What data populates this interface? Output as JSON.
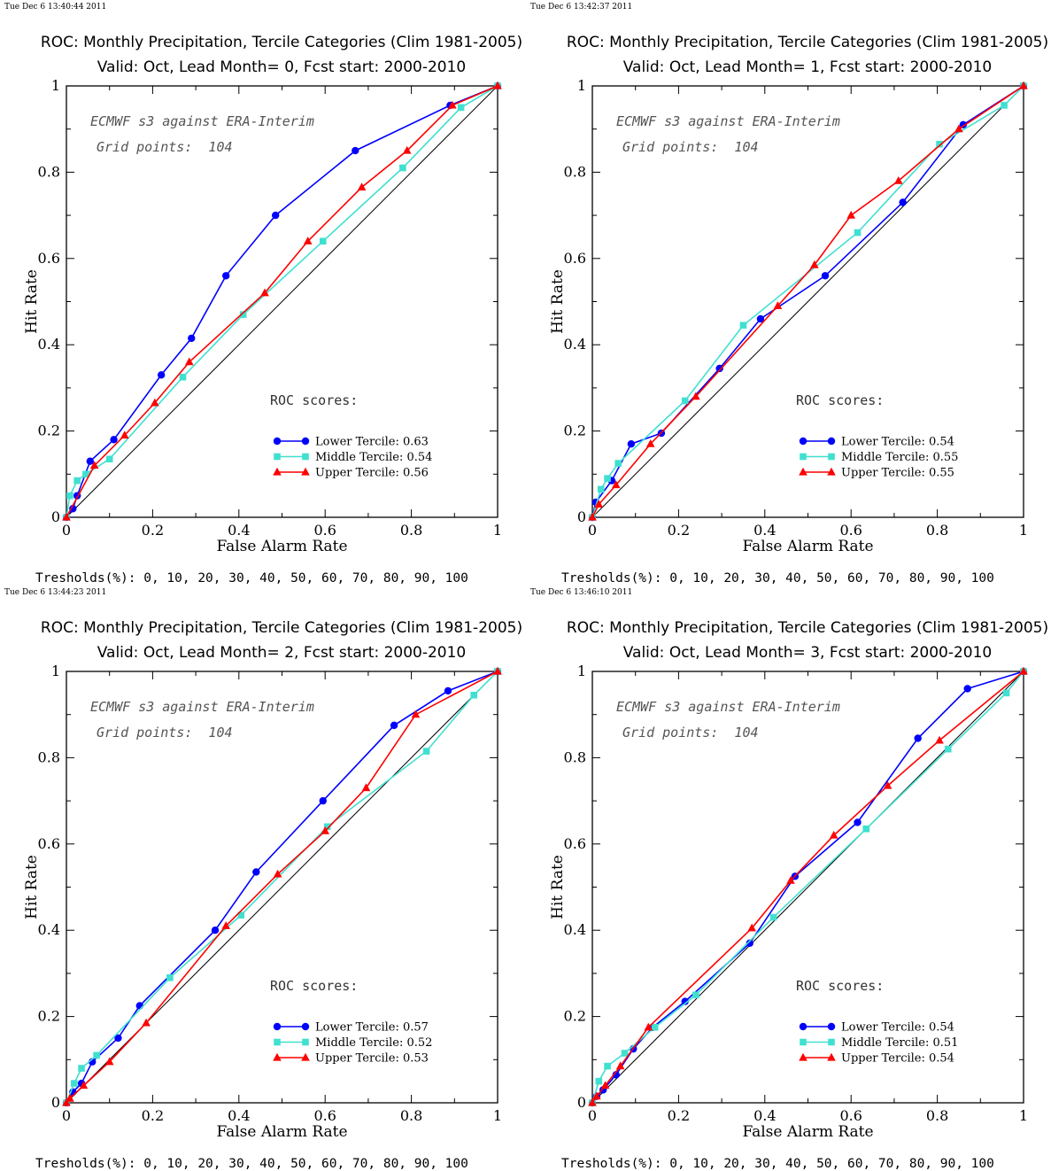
{
  "colors": {
    "lower": "#0000ff",
    "middle": "#40e0d0",
    "upper": "#ff0000"
  },
  "chart_data": [
    {
      "type": "line",
      "timestamp": "Tue Dec  6 13:40:44 2011",
      "title": "ROC: Monthly Precipitation, Tercile Categories (Clim 1981-2005)",
      "subtitle": "Valid: Oct, Lead Month= 0, Fcst start: 2000-2010",
      "xlabel": "False Alarm Rate",
      "ylabel": "Hit Rate",
      "xlim": [
        0,
        1
      ],
      "ylim": [
        0,
        1
      ],
      "xticks": [
        "0",
        "0.2",
        "0.4",
        "0.6",
        "0.8",
        "1"
      ],
      "yticks": [
        "0",
        "0.2",
        "0.4",
        "0.6",
        "0.8",
        "1"
      ],
      "annotation1": "ECMWF s3 against ERA-Interim",
      "annotation2": "Grid points:  104",
      "scores_label": "ROC scores:",
      "thresholds": "Tresholds(%): 0, 10, 20, 30, 40, 50, 60, 70, 80, 90, 100",
      "series": [
        {
          "name": "Lower Tercile: 0.63",
          "marker": "circle",
          "x": [
            0,
            0.015,
            0.025,
            0.055,
            0.11,
            0.22,
            0.29,
            0.37,
            0.485,
            0.67,
            0.89,
            1
          ],
          "y": [
            0,
            0.02,
            0.05,
            0.13,
            0.18,
            0.33,
            0.415,
            0.56,
            0.7,
            0.85,
            0.955,
            1
          ]
        },
        {
          "name": "Middle Tercile: 0.54",
          "marker": "square",
          "x": [
            0,
            0.008,
            0.025,
            0.045,
            0.1,
            0.27,
            0.41,
            0.595,
            0.78,
            0.915,
            1
          ],
          "y": [
            0,
            0.05,
            0.085,
            0.1,
            0.135,
            0.325,
            0.47,
            0.64,
            0.81,
            0.95,
            1
          ]
        },
        {
          "name": "Upper Tercile: 0.56",
          "marker": "triangle",
          "x": [
            0,
            0.065,
            0.135,
            0.205,
            0.285,
            0.46,
            0.56,
            0.685,
            0.79,
            0.895,
            1
          ],
          "y": [
            0,
            0.12,
            0.19,
            0.265,
            0.36,
            0.52,
            0.64,
            0.765,
            0.85,
            0.955,
            1
          ]
        }
      ]
    },
    {
      "type": "line",
      "timestamp": "Tue Dec  6 13:42:37 2011",
      "title": "ROC: Monthly Precipitation, Tercile Categories (Clim 1981-2005)",
      "subtitle": "Valid: Oct, Lead Month= 1, Fcst start: 2000-2010",
      "xlabel": "False Alarm Rate",
      "ylabel": "Hit Rate",
      "xlim": [
        0,
        1
      ],
      "ylim": [
        0,
        1
      ],
      "xticks": [
        "0",
        "0.2",
        "0.4",
        "0.6",
        "0.8",
        "1"
      ],
      "yticks": [
        "0",
        "0.2",
        "0.4",
        "0.6",
        "0.8",
        "1"
      ],
      "annotation1": "ECMWF s3 against ERA-Interim",
      "annotation2": "Grid points:  104",
      "scores_label": "ROC scores:",
      "thresholds": "Tresholds(%): 0, 10, 20, 30, 40, 50, 60, 70, 80, 90, 100",
      "series": [
        {
          "name": "Lower Tercile: 0.54",
          "marker": "circle",
          "x": [
            0,
            0.008,
            0.045,
            0.09,
            0.16,
            0.295,
            0.39,
            0.54,
            0.72,
            0.86,
            1
          ],
          "y": [
            0,
            0.035,
            0.085,
            0.17,
            0.195,
            0.345,
            0.46,
            0.56,
            0.73,
            0.91,
            1
          ]
        },
        {
          "name": "Middle Tercile: 0.55",
          "marker": "square",
          "x": [
            0,
            0.02,
            0.035,
            0.06,
            0.215,
            0.35,
            0.615,
            0.805,
            0.955,
            1
          ],
          "y": [
            0,
            0.065,
            0.09,
            0.125,
            0.27,
            0.445,
            0.66,
            0.865,
            0.955,
            1
          ]
        },
        {
          "name": "Upper Tercile: 0.55",
          "marker": "triangle",
          "x": [
            0,
            0.015,
            0.055,
            0.135,
            0.24,
            0.43,
            0.515,
            0.6,
            0.71,
            0.85,
            1
          ],
          "y": [
            0,
            0.03,
            0.075,
            0.17,
            0.28,
            0.49,
            0.585,
            0.7,
            0.78,
            0.9,
            1
          ]
        }
      ]
    },
    {
      "type": "line",
      "timestamp": "Tue Dec  6 13:44:23 2011",
      "title": "ROC: Monthly Precipitation, Tercile Categories (Clim 1981-2005)",
      "subtitle": "Valid: Oct, Lead Month= 2, Fcst start: 2000-2010",
      "xlabel": "False Alarm Rate",
      "ylabel": "Hit Rate",
      "xlim": [
        0,
        1
      ],
      "ylim": [
        0,
        1
      ],
      "xticks": [
        "0",
        "0.2",
        "0.4",
        "0.6",
        "0.8",
        "1"
      ],
      "yticks": [
        "0",
        "0.2",
        "0.4",
        "0.6",
        "0.8",
        "1"
      ],
      "annotation1": "ECMWF s3 against ERA-Interim",
      "annotation2": "Grid points:  104",
      "scores_label": "ROC scores:",
      "thresholds": "Tresholds(%): 0, 10, 20, 30, 40, 50, 60, 70, 80, 90, 100",
      "series": [
        {
          "name": "Lower Tercile: 0.57",
          "marker": "circle",
          "x": [
            0,
            0.015,
            0.035,
            0.06,
            0.12,
            0.17,
            0.345,
            0.44,
            0.595,
            0.76,
            0.885,
            1
          ],
          "y": [
            0,
            0.025,
            0.045,
            0.095,
            0.15,
            0.225,
            0.4,
            0.535,
            0.7,
            0.875,
            0.955,
            1
          ]
        },
        {
          "name": "Middle Tercile: 0.52",
          "marker": "square",
          "x": [
            0,
            0.018,
            0.035,
            0.07,
            0.24,
            0.405,
            0.605,
            0.835,
            0.945,
            1
          ],
          "y": [
            0,
            0.045,
            0.08,
            0.11,
            0.29,
            0.435,
            0.64,
            0.815,
            0.945,
            1
          ]
        },
        {
          "name": "Upper Tercile: 0.53",
          "marker": "triangle",
          "x": [
            0,
            0.008,
            0.04,
            0.1,
            0.185,
            0.37,
            0.49,
            0.6,
            0.695,
            0.81,
            1
          ],
          "y": [
            0,
            0.01,
            0.04,
            0.095,
            0.185,
            0.41,
            0.53,
            0.63,
            0.73,
            0.9,
            1
          ]
        }
      ]
    },
    {
      "type": "line",
      "timestamp": "Tue Dec  6 13:46:10 2011",
      "title": "ROC: Monthly Precipitation, Tercile Categories (Clim 1981-2005)",
      "subtitle": "Valid: Oct, Lead Month= 3, Fcst start: 2000-2010",
      "xlabel": "False Alarm Rate",
      "ylabel": "Hit Rate",
      "xlim": [
        0,
        1
      ],
      "ylim": [
        0,
        1
      ],
      "xticks": [
        "0",
        "0.2",
        "0.4",
        "0.6",
        "0.8",
        "1"
      ],
      "yticks": [
        "0",
        "0.2",
        "0.4",
        "0.6",
        "0.8",
        "1"
      ],
      "annotation1": "ECMWF s3 against ERA-Interim",
      "annotation2": "Grid points:  104",
      "scores_label": "ROC scores:",
      "thresholds": "Tresholds(%): 0, 10, 20, 30, 40, 50, 60, 70, 80, 90, 100",
      "series": [
        {
          "name": "Lower Tercile: 0.54",
          "marker": "circle",
          "x": [
            0,
            0.01,
            0.025,
            0.055,
            0.095,
            0.14,
            0.215,
            0.365,
            0.47,
            0.615,
            0.755,
            0.87,
            1
          ],
          "y": [
            0,
            0.015,
            0.03,
            0.065,
            0.125,
            0.175,
            0.235,
            0.37,
            0.525,
            0.65,
            0.845,
            0.96,
            1
          ]
        },
        {
          "name": "Middle Tercile: 0.51",
          "marker": "square",
          "x": [
            0,
            0.015,
            0.035,
            0.075,
            0.145,
            0.24,
            0.42,
            0.635,
            0.825,
            0.96,
            1
          ],
          "y": [
            0,
            0.05,
            0.085,
            0.115,
            0.175,
            0.25,
            0.43,
            0.635,
            0.82,
            0.95,
            1
          ]
        },
        {
          "name": "Upper Tercile: 0.54",
          "marker": "triangle",
          "x": [
            0,
            0.01,
            0.03,
            0.065,
            0.13,
            0.37,
            0.46,
            0.56,
            0.685,
            0.805,
            1
          ],
          "y": [
            0,
            0.015,
            0.04,
            0.085,
            0.175,
            0.405,
            0.515,
            0.62,
            0.735,
            0.84,
            1
          ]
        }
      ]
    }
  ]
}
